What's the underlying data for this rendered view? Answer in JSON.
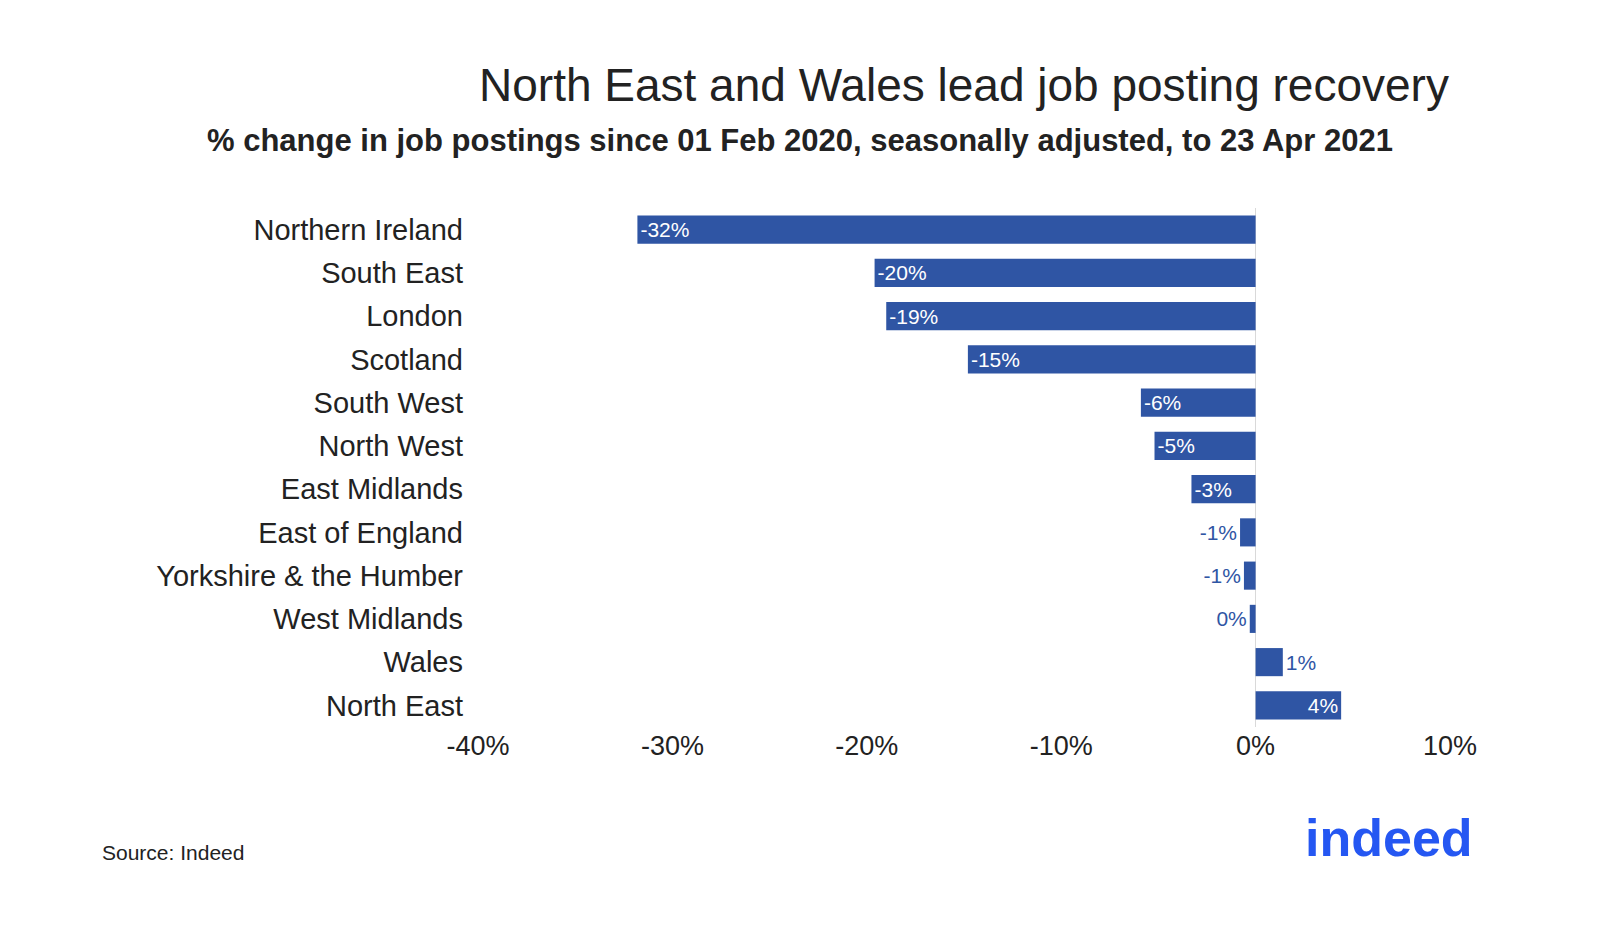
{
  "chart_data": {
    "type": "bar",
    "orientation": "horizontal",
    "title": "North East and Wales lead job posting recovery",
    "subtitle": "% change in job postings since 01 Feb 2020, seasonally adjusted, to 23 Apr 2021",
    "categories": [
      "Northern Ireland",
      "South East",
      "London",
      "Scotland",
      "South West",
      "North West",
      "East Midlands",
      "East of England",
      "Yorkshire & the Humber",
      "West Midlands",
      "Wales",
      "North East"
    ],
    "values": [
      -31.8,
      -19.6,
      -19.0,
      -14.8,
      -5.9,
      -5.2,
      -3.3,
      -0.8,
      -0.6,
      -0.3,
      1.4,
      4.4
    ],
    "value_labels": [
      "-32%",
      "-20%",
      "-19%",
      "-15%",
      "-6%",
      "-5%",
      "-3%",
      "-1%",
      "-1%",
      "0%",
      "1%",
      "4%"
    ],
    "data_labels": true,
    "color": "#2f55a4",
    "xlim": [
      -40,
      10
    ],
    "xticks": [
      {
        "value": -40,
        "label": "-40%"
      },
      {
        "value": -30,
        "label": "-30%"
      },
      {
        "value": -20,
        "label": "-20%"
      },
      {
        "value": -10,
        "label": "-10%"
      },
      {
        "value": 0,
        "label": "0%"
      },
      {
        "value": 10,
        "label": "10%"
      }
    ],
    "grid": false,
    "source": "Source: Indeed",
    "logo": "indeed"
  }
}
